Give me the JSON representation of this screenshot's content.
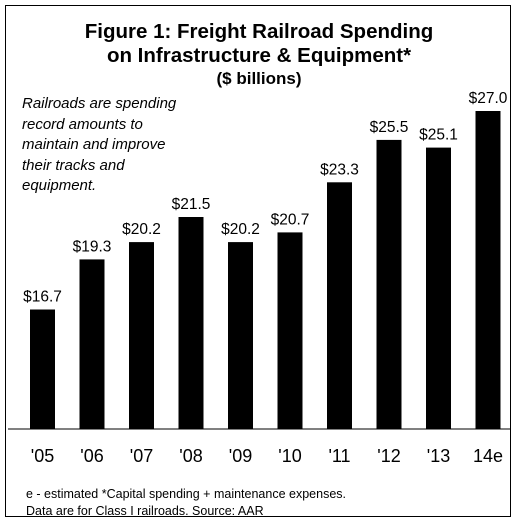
{
  "chart_data": {
    "type": "bar",
    "title_lines": [
      "Figure 1: Freight Railroad Spending",
      "on Infrastructure & Equipment*"
    ],
    "subtitle": "($ billions)",
    "annotation_lines": [
      "Railroads are spending",
      "record amounts to",
      "maintain and improve",
      "their tracks and",
      "equipment."
    ],
    "categories": [
      "'05",
      "'06",
      "'07",
      "'08",
      "'09",
      "'10",
      "'11",
      "'12",
      "'13",
      "14e"
    ],
    "values": [
      16.7,
      19.3,
      20.2,
      21.5,
      20.2,
      20.7,
      23.3,
      25.5,
      25.1,
      27.0
    ],
    "data_labels": [
      "$16.7",
      "$19.3",
      "$20.2",
      "$21.5",
      "$20.2",
      "$20.7",
      "$23.3",
      "$25.5",
      "$25.1",
      "$27.0"
    ],
    "xlabel": "",
    "ylabel": "",
    "ylim": [
      10.5,
      27.0
    ],
    "grid": false,
    "legend": "none",
    "bar_color": "#000000",
    "footnote_lines": [
      "e - estimated    *Capital spending + maintenance expenses.",
      "Data are for Class I railroads.   Source: AAR"
    ]
  }
}
